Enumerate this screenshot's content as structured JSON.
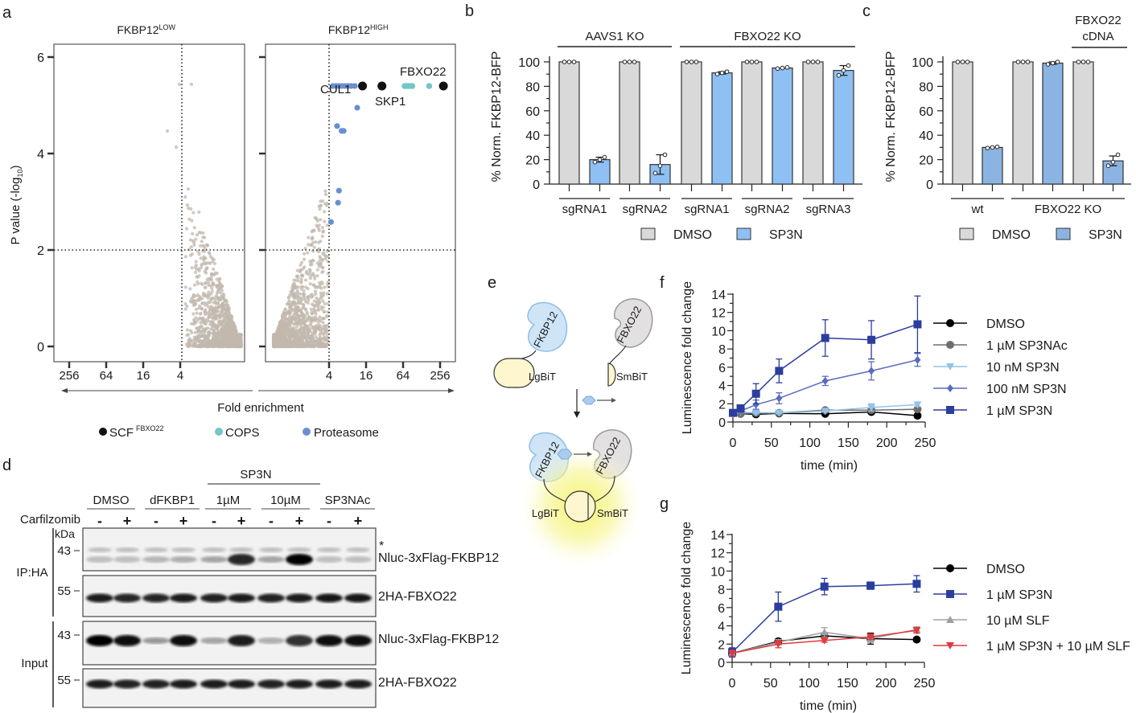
{
  "panel_labels": {
    "a": "a",
    "b": "b",
    "c": "c",
    "d": "d",
    "e": "e",
    "f": "f",
    "g": "g"
  },
  "chart_data": [
    {
      "id": "a",
      "type": "scatter",
      "subplots": [
        {
          "title": "FKBP12",
          "title_sup": "LOW",
          "xticks": [
            "256",
            "64",
            "16",
            "4"
          ],
          "direction": "left"
        },
        {
          "title": "FKBP12",
          "title_sup": "HIGH",
          "xticks": [
            "4",
            "16",
            "64",
            "256"
          ],
          "direction": "right"
        }
      ],
      "xlabel": "Fold enrichment",
      "ylabel": "P value (-log",
      "ylabel_sub": "10",
      "ylabel_end": ")",
      "yticks": [
        "0",
        "2",
        "4",
        "6"
      ],
      "ylim": [
        -0.3,
        6.3
      ],
      "x_scale": "log2",
      "threshold_fold": 4,
      "threshold_p": 2,
      "background_color": "#c2b8ae",
      "highlighted": [
        {
          "group": "Proteasome",
          "fold": 4.6,
          "p": 5.4
        },
        {
          "group": "Proteasome",
          "fold": 5.2,
          "p": 5.4
        },
        {
          "group": "Proteasome",
          "fold": 5.8,
          "p": 5.4
        },
        {
          "group": "Proteasome",
          "fold": 6.5,
          "p": 5.4
        },
        {
          "group": "Proteasome",
          "fold": 7.3,
          "p": 5.4
        },
        {
          "group": "Proteasome",
          "fold": 8.2,
          "p": 5.4
        },
        {
          "group": "Proteasome",
          "fold": 9.2,
          "p": 5.4
        },
        {
          "group": "Proteasome",
          "fold": 10.5,
          "p": 5.4
        },
        {
          "group": "Proteasome",
          "fold": 11.5,
          "p": 4.95
        },
        {
          "group": "Proteasome",
          "fold": 5.4,
          "p": 4.57
        },
        {
          "group": "Proteasome",
          "fold": 6.4,
          "p": 4.47
        },
        {
          "group": "Proteasome",
          "fold": 6.9,
          "p": 4.47
        },
        {
          "group": "Proteasome",
          "fold": 5.8,
          "p": 3.23
        },
        {
          "group": "Proteasome",
          "fold": 5.6,
          "p": 2.98
        },
        {
          "group": "Proteasome",
          "fold": 4.3,
          "p": 2.58
        },
        {
          "group": "SCF",
          "fold": 14,
          "p": 5.4,
          "label": "CUL1"
        },
        {
          "group": "SCF",
          "fold": 29,
          "p": 5.4,
          "label": "SKP1"
        },
        {
          "group": "COPS",
          "fold": 68,
          "p": 5.4
        },
        {
          "group": "COPS",
          "fold": 74,
          "p": 5.4
        },
        {
          "group": "COPS",
          "fold": 82,
          "p": 5.4
        },
        {
          "group": "COPS",
          "fold": 90,
          "p": 5.4
        },
        {
          "group": "COPS",
          "fold": 170,
          "p": 5.4
        },
        {
          "group": "SCF",
          "fold": 290,
          "p": 5.4,
          "label": "FBXO22"
        }
      ],
      "legend": [
        {
          "key": "SCF",
          "label": "SCF",
          "sup": "FBXO22",
          "color": "#111111"
        },
        {
          "key": "COPS",
          "label": "COPS",
          "color": "#72c7c7"
        },
        {
          "key": "Proteasome",
          "label": "Proteasome",
          "color": "#6a8fd0"
        }
      ]
    },
    {
      "id": "b",
      "type": "bar",
      "ylabel": "% Norm. FKBP12-BFP",
      "ylim": [
        0,
        100
      ],
      "yticks": [
        "0",
        "20",
        "40",
        "60",
        "80",
        "100"
      ],
      "categories": [
        "sgRNA1",
        "sgRNA2",
        "sgRNA1",
        "sgRNA2",
        "sgRNA3"
      ],
      "groups": [
        {
          "label": "AAVS1 KO",
          "from": 0,
          "to": 1
        },
        {
          "label": "FBXO22 KO",
          "from": 2,
          "to": 4
        }
      ],
      "series": [
        {
          "name": "DMSO",
          "color": "#d9d9d9",
          "values": [
            100,
            100,
            100,
            100,
            100
          ],
          "sd": [
            0,
            0,
            0,
            0,
            0
          ],
          "replicates": [
            [
              100,
              100,
              100
            ],
            [
              100,
              100,
              100
            ],
            [
              100,
              100,
              100
            ],
            [
              100,
              100,
              100
            ],
            [
              100,
              100,
              100
            ]
          ]
        },
        {
          "name": "SP3N",
          "color": "#8fc0f3",
          "values": [
            20,
            16,
            91,
            95,
            93
          ],
          "sd": [
            2,
            8,
            1,
            0.5,
            4
          ],
          "replicates": [
            [
              18,
              20,
              22
            ],
            [
              9,
              15,
              24
            ],
            [
              90,
              91,
              92
            ],
            [
              94.5,
              95,
              95.5
            ],
            [
              89,
              93,
              97
            ]
          ]
        }
      ],
      "legend": [
        "DMSO",
        "SP3N"
      ]
    },
    {
      "id": "c",
      "type": "bar",
      "ylabel": "% Norm. FKBP12-BFP",
      "ylim": [
        0,
        100
      ],
      "yticks": [
        "0",
        "20",
        "40",
        "60",
        "80",
        "100"
      ],
      "categories": [
        "wt",
        "FBXO22 KO",
        "FBXO22 KO + FBXO22 cDNA"
      ],
      "groups": [
        {
          "label": "wt",
          "from": 0,
          "to": 0
        },
        {
          "label": "FBXO22 KO",
          "from": 1,
          "to": 2
        }
      ],
      "top_groups": [
        {
          "label_line1": "FBXO22",
          "label_line2": "cDNA",
          "from": 2,
          "to": 2
        }
      ],
      "series": [
        {
          "name": "DMSO",
          "color": "#d9d9d9",
          "values": [
            100,
            100,
            100
          ],
          "sd": [
            0,
            0,
            0
          ],
          "replicates": [
            [
              100,
              100,
              100
            ],
            [
              100,
              100,
              100
            ],
            [
              100,
              100,
              100
            ]
          ]
        },
        {
          "name": "SP3N",
          "color": "#8cb4e3",
          "values": [
            30,
            99,
            19
          ],
          "sd": [
            0.5,
            1,
            4
          ],
          "replicates": [
            [
              29.5,
              30,
              30.5
            ],
            [
              98,
              99,
              100
            ],
            [
              15,
              18,
              24
            ]
          ]
        }
      ],
      "legend": [
        "DMSO",
        "SP3N"
      ]
    },
    {
      "id": "f",
      "type": "line",
      "xlabel": "time (min)",
      "ylabel": "Luminescence fold change",
      "xlim": [
        0,
        250
      ],
      "ylim": [
        0,
        14
      ],
      "xticks": [
        "0",
        "50",
        "100",
        "150",
        "200",
        "250"
      ],
      "yticks": [
        "0",
        "2",
        "4",
        "6",
        "8",
        "10",
        "12",
        "14"
      ],
      "x": [
        0,
        10,
        30,
        60,
        120,
        180,
        240
      ],
      "series": [
        {
          "name": "DMSO",
          "color": "#000000",
          "marker": "circle",
          "values": [
            1.0,
            0.9,
            0.85,
            0.95,
            0.9,
            1.1,
            0.7
          ],
          "err": [
            0.1,
            0.1,
            0.1,
            0.1,
            0.1,
            0.2,
            0.1
          ]
        },
        {
          "name": "1 µM SP3NAc",
          "color": "#6e6e6e",
          "marker": "circle",
          "values": [
            1.0,
            0.9,
            1.0,
            1.0,
            1.3,
            1.3,
            1.4
          ],
          "err": [
            0.1,
            0.1,
            0.1,
            0.1,
            0.1,
            0.2,
            0.1
          ]
        },
        {
          "name": "10 nM SP3N",
          "color": "#93c3ea",
          "marker": "triangle-down",
          "values": [
            0.9,
            1.1,
            1.0,
            1.0,
            1.2,
            1.6,
            1.9
          ],
          "err": [
            0.1,
            0.1,
            0.1,
            0.1,
            0.1,
            0.4,
            0.2
          ]
        },
        {
          "name": "100 nM SP3N",
          "color": "#5b6bbd",
          "marker": "diamond",
          "values": [
            1.1,
            1.2,
            1.9,
            2.6,
            4.5,
            5.6,
            6.8
          ],
          "err": [
            0.2,
            0.2,
            0.5,
            0.6,
            0.5,
            1.0,
            0.7
          ]
        },
        {
          "name": "1 µM SP3N",
          "color": "#2b3e9e",
          "marker": "square",
          "values": [
            1.0,
            1.5,
            3.1,
            5.6,
            9.2,
            9.0,
            10.7
          ],
          "err": [
            0.2,
            0.2,
            1.1,
            1.3,
            2.0,
            2.1,
            3.1
          ]
        }
      ]
    },
    {
      "id": "g",
      "type": "line",
      "xlabel": "time (min)",
      "ylabel": "Luminescence fold change",
      "xlim": [
        0,
        250
      ],
      "ylim": [
        0,
        14
      ],
      "xticks": [
        "0",
        "50",
        "100",
        "150",
        "200",
        "250"
      ],
      "yticks": [
        "0",
        "2",
        "4",
        "6",
        "8",
        "10",
        "12",
        "14"
      ],
      "x": [
        0,
        60,
        120,
        180,
        240
      ],
      "series": [
        {
          "name": "DMSO",
          "color": "#000000",
          "marker": "circle",
          "values": [
            1.0,
            2.3,
            2.9,
            2.6,
            2.5
          ],
          "err": [
            0.4,
            0.3,
            0.3,
            0.6,
            0.2
          ]
        },
        {
          "name": "1 µM SP3N",
          "color": "#2b3e9e",
          "marker": "square",
          "values": [
            1.1,
            6.1,
            8.3,
            8.4,
            8.6
          ],
          "err": [
            0.5,
            1.6,
            0.9,
            0.4,
            0.9
          ]
        },
        {
          "name": "10 µM SLF",
          "color": "#a0a0a0",
          "marker": "triangle-up",
          "values": [
            1.0,
            2.2,
            3.3,
            2.6,
            3.6
          ],
          "err": [
            0.3,
            0.3,
            0.5,
            0.4,
            0.3
          ]
        },
        {
          "name": "1 µM SP3N + 10 µM SLF",
          "color": "#e0393e",
          "marker": "triangle-down",
          "values": [
            1.0,
            2.0,
            2.4,
            2.8,
            3.5
          ],
          "err": [
            0.3,
            0.4,
            0.2,
            0.3,
            0.3
          ]
        }
      ]
    }
  ],
  "blot": {
    "header_group": "SP3N",
    "treatments": [
      "DMSO",
      "dFKBP1",
      "1µM",
      "10µM",
      "SP3NAc"
    ],
    "carfilzomib_label": "Carfilzomib",
    "carfilzomib": [
      "-",
      "+",
      "-",
      "+",
      "-",
      "+",
      "-",
      "+",
      "-",
      "+"
    ],
    "kda_label": "kDa",
    "sections": [
      {
        "label": "IP:HA"
      },
      {
        "label": "Input"
      }
    ],
    "strips": [
      {
        "marker": "43",
        "protein": "Nluc-3xFlag-FKBP12",
        "asterisk": "*",
        "intensity": [
          0.18,
          0.18,
          0.22,
          0.25,
          0.3,
          0.85,
          0.3,
          1.0,
          0.18,
          0.18
        ]
      },
      {
        "marker": "55",
        "protein": "2HA-FBXO22",
        "intensity": [
          0.9,
          0.85,
          0.85,
          0.9,
          0.88,
          0.9,
          0.88,
          0.9,
          0.92,
          0.92
        ]
      },
      {
        "marker": "43",
        "protein": "Nluc-3xFlag-FKBP12",
        "intensity": [
          1.0,
          0.95,
          0.35,
          0.95,
          0.3,
          0.9,
          0.25,
          0.8,
          0.95,
          0.95
        ]
      },
      {
        "marker": "55",
        "protein": "2HA-FBXO22",
        "intensity": [
          0.9,
          0.88,
          0.88,
          0.9,
          0.9,
          0.9,
          0.88,
          0.9,
          0.9,
          0.9
        ]
      }
    ]
  },
  "diagram": {
    "fkbp12": "FKBP12",
    "fbxo22": "FBXO22",
    "lgbit": "LgBiT",
    "smbit": "SmBiT",
    "colors": {
      "fkbp12": "#cfe5f7",
      "fbxo22": "#e2e0e0",
      "lgbit": "#fdf6cf",
      "glow": "#f3f25a"
    }
  }
}
